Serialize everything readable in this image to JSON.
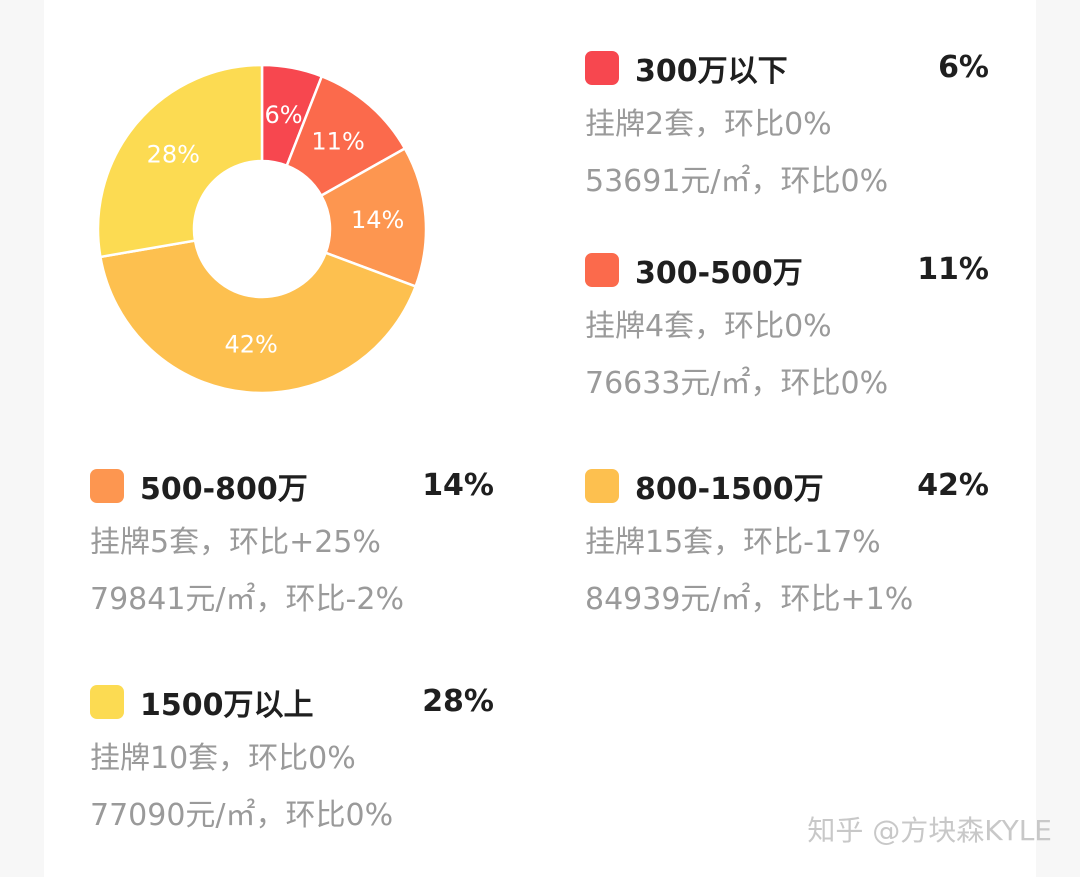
{
  "chart_data": {
    "type": "pie",
    "donut": true,
    "title": "",
    "categories": [
      "300万以下",
      "300-500万",
      "500-800万",
      "800-1500万",
      "1500万以上"
    ],
    "values": [
      6,
      11,
      14,
      42,
      28
    ],
    "slice_labels": [
      "6%",
      "11%",
      "14%",
      "42%",
      "28%"
    ],
    "colors": [
      "#f7474f",
      "#fb6a4c",
      "#fd9650",
      "#fdc04f",
      "#fcdb52"
    ],
    "legend": [
      {
        "name": "300万以下",
        "pct": "6%",
        "line1": "挂牌2套，环比0%",
        "line2": "53691元/㎡，环比0%"
      },
      {
        "name": "300-500万",
        "pct": "11%",
        "line1": "挂牌4套，环比0%",
        "line2": "76633元/㎡，环比0%"
      },
      {
        "name": "500-800万",
        "pct": "14%",
        "line1": "挂牌5套，环比+25%",
        "line2": "79841元/㎡，环比-2%"
      },
      {
        "name": "800-1500万",
        "pct": "42%",
        "line1": "挂牌15套，环比-17%",
        "line2": "84939元/㎡，环比+1%"
      },
      {
        "name": "1500万以上",
        "pct": "28%",
        "line1": "挂牌10套，环比0%",
        "line2": "77090元/㎡，环比0%"
      }
    ]
  },
  "watermark": "知乎 @方块森KYLE"
}
